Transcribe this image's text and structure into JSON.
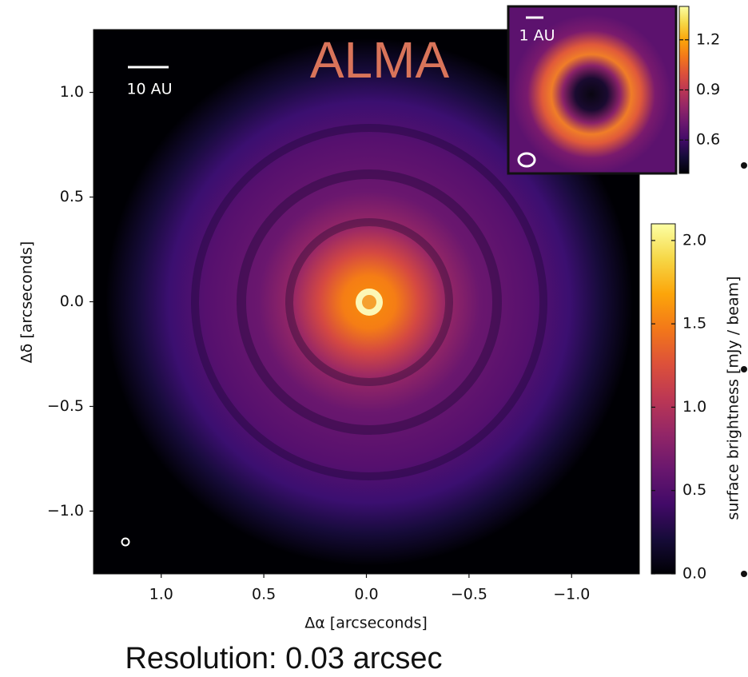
{
  "chart_data": {
    "type": "image",
    "title": "ALMA",
    "xlabel": "Δα  [arcseconds]",
    "ylabel": "Δδ  [arcseconds]",
    "xlim": [
      1.33,
      -1.33
    ],
    "ylim": [
      -1.3,
      1.3
    ],
    "xticks": [
      {
        "value": 1,
        "label": "1.0"
      },
      0.5,
      {
        "value": 0,
        "label": "0.0"
      },
      {
        "value": -0.5,
        "label": "−0.5"
      },
      {
        "value": -1,
        "label": "−1.0"
      }
    ],
    "yticks": [
      {
        "value": 1,
        "label": "1.0"
      },
      0.5,
      {
        "value": 0,
        "label": "0.0"
      },
      {
        "value": -0.5,
        "label": "−0.5"
      },
      {
        "value": -1,
        "label": "−1.0"
      }
    ],
    "colormap": "inferno",
    "colorbar": {
      "label": "surface brightness [mJy / beam]",
      "clim": [
        0,
        2.1
      ],
      "ticks": [
        {
          "value": 0,
          "label": "0.0"
        },
        0.5,
        {
          "value": 1,
          "label": "1.0"
        },
        1.5,
        {
          "value": 2,
          "label": "2.0"
        }
      ]
    },
    "scale_bar": "10 AU",
    "inset": {
      "scale_bar": "1 AU",
      "clim": [
        0.4,
        1.4
      ],
      "ticks": [
        1.2,
        0.9,
        0.6
      ]
    },
    "caption": "Resolution: 0.03 arcsec"
  }
}
